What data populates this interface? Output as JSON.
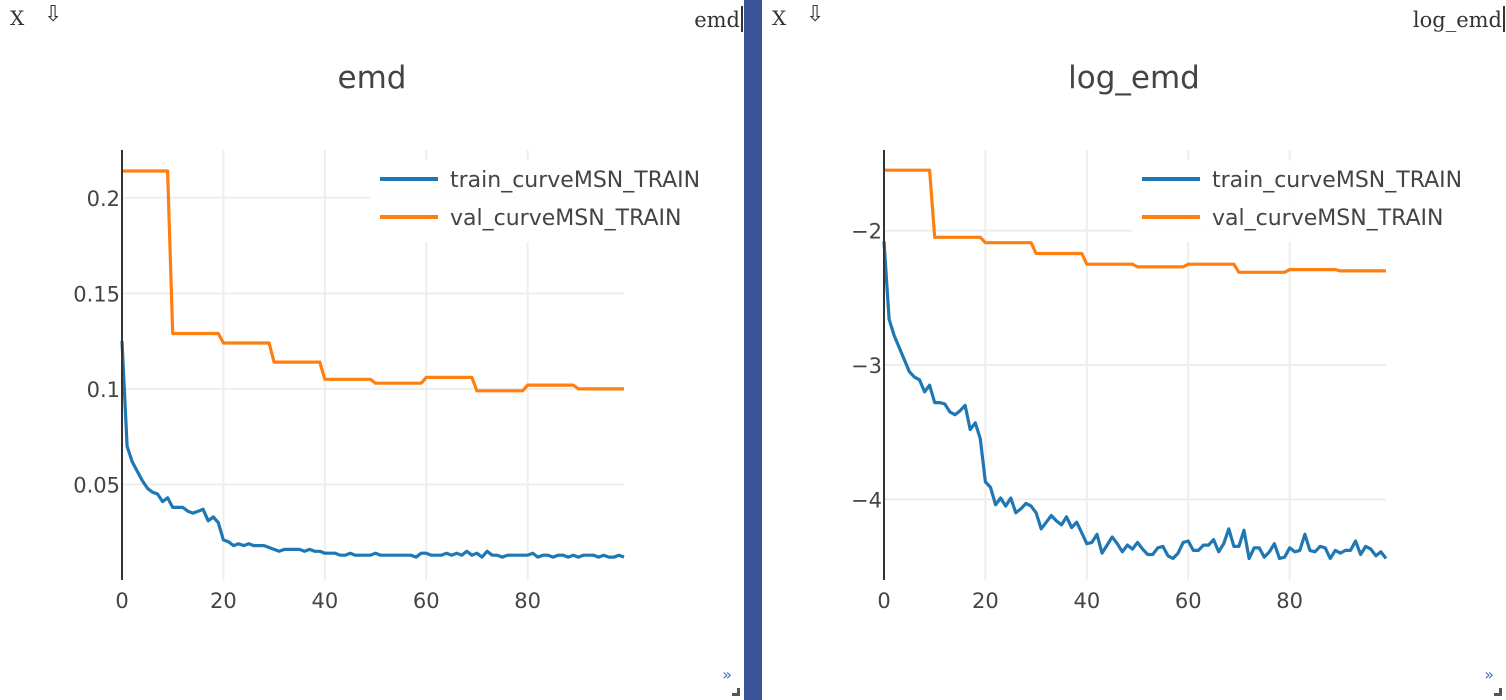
{
  "panes": [
    {
      "close_label": "X",
      "download_label": "⇩",
      "env_title": "emd",
      "corner_label": "»"
    },
    {
      "close_label": "X",
      "download_label": "⇩",
      "env_title": "log_emd",
      "corner_label": "»"
    }
  ],
  "chart_data": [
    {
      "type": "line",
      "title": "emd",
      "xlabel": "",
      "ylabel": "",
      "xlim": [
        0,
        99
      ],
      "ylim": [
        0.0,
        0.225
      ],
      "xticks": [
        0,
        20,
        40,
        60,
        80
      ],
      "xtick_labels": [
        "0",
        "20",
        "40",
        "60",
        "80"
      ],
      "yticks": [
        0.05,
        0.1,
        0.15,
        0.2
      ],
      "ytick_labels": [
        "0.05",
        "0.1",
        "0.15",
        "0.2"
      ],
      "grid": true,
      "legend_position": "top-right",
      "series": [
        {
          "name": "train_curveMSN_TRAIN",
          "color": "#1f77b4",
          "x": [
            0,
            1,
            2,
            3,
            4,
            5,
            6,
            7,
            8,
            9,
            10,
            11,
            12,
            13,
            14,
            15,
            16,
            17,
            18,
            19,
            20,
            21,
            22,
            23,
            24,
            25,
            26,
            27,
            28,
            29,
            30,
            31,
            32,
            33,
            34,
            35,
            36,
            37,
            38,
            39,
            40,
            41,
            42,
            43,
            44,
            45,
            46,
            47,
            48,
            49,
            50,
            51,
            52,
            53,
            54,
            55,
            56,
            57,
            58,
            59,
            60,
            61,
            62,
            63,
            64,
            65,
            66,
            67,
            68,
            69,
            70,
            71,
            72,
            73,
            74,
            75,
            76,
            77,
            78,
            79,
            80,
            81,
            82,
            83,
            84,
            85,
            86,
            87,
            88,
            89,
            90,
            91,
            92,
            93,
            94,
            95,
            96,
            97,
            98,
            99
          ],
          "values": [
            0.125,
            0.07,
            0.062,
            0.057,
            0.052,
            0.048,
            0.046,
            0.045,
            0.041,
            0.043,
            0.038,
            0.038,
            0.038,
            0.036,
            0.035,
            0.036,
            0.037,
            0.031,
            0.033,
            0.03,
            0.021,
            0.02,
            0.018,
            0.019,
            0.018,
            0.019,
            0.018,
            0.018,
            0.018,
            0.017,
            0.016,
            0.015,
            0.016,
            0.016,
            0.016,
            0.016,
            0.015,
            0.016,
            0.015,
            0.015,
            0.014,
            0.014,
            0.014,
            0.013,
            0.013,
            0.014,
            0.013,
            0.013,
            0.013,
            0.013,
            0.014,
            0.013,
            0.013,
            0.013,
            0.013,
            0.013,
            0.013,
            0.013,
            0.012,
            0.014,
            0.014,
            0.013,
            0.013,
            0.013,
            0.014,
            0.013,
            0.014,
            0.013,
            0.015,
            0.013,
            0.014,
            0.012,
            0.015,
            0.013,
            0.013,
            0.012,
            0.013,
            0.013,
            0.013,
            0.013,
            0.013,
            0.014,
            0.012,
            0.013,
            0.013,
            0.012,
            0.013,
            0.013,
            0.012,
            0.013,
            0.012,
            0.013,
            0.013,
            0.013,
            0.012,
            0.013,
            0.012,
            0.012,
            0.013,
            0.012
          ]
        },
        {
          "name": "val_curveMSN_TRAIN",
          "color": "#ff7f0e",
          "x": [
            0,
            9,
            10,
            19,
            20,
            29,
            30,
            39,
            40,
            49,
            50,
            59,
            60,
            69,
            70,
            79,
            80,
            89,
            90,
            99
          ],
          "values": [
            0.214,
            0.214,
            0.129,
            0.129,
            0.124,
            0.124,
            0.114,
            0.114,
            0.105,
            0.105,
            0.103,
            0.103,
            0.106,
            0.106,
            0.099,
            0.099,
            0.102,
            0.102,
            0.1,
            0.1
          ]
        }
      ]
    },
    {
      "type": "line",
      "title": "log_emd",
      "xlabel": "",
      "ylabel": "",
      "xlim": [
        0,
        99
      ],
      "ylim": [
        -4.6,
        -1.4
      ],
      "xticks": [
        0,
        20,
        40,
        60,
        80
      ],
      "xtick_labels": [
        "0",
        "20",
        "40",
        "60",
        "80"
      ],
      "yticks": [
        -2,
        -3,
        -4
      ],
      "ytick_labels": [
        "−2",
        "−3",
        "−4"
      ],
      "grid": true,
      "legend_position": "top-right",
      "series": [
        {
          "name": "train_curveMSN_TRAIN",
          "color": "#1f77b4",
          "x": [
            0,
            1,
            2,
            3,
            4,
            5,
            6,
            7,
            8,
            9,
            10,
            11,
            12,
            13,
            14,
            15,
            16,
            17,
            18,
            19,
            20,
            21,
            22,
            23,
            24,
            25,
            26,
            27,
            28,
            29,
            30,
            31,
            32,
            33,
            34,
            35,
            36,
            37,
            38,
            39,
            40,
            41,
            42,
            43,
            44,
            45,
            46,
            47,
            48,
            49,
            50,
            51,
            52,
            53,
            54,
            55,
            56,
            57,
            58,
            59,
            60,
            61,
            62,
            63,
            64,
            65,
            66,
            67,
            68,
            69,
            70,
            71,
            72,
            73,
            74,
            75,
            76,
            77,
            78,
            79,
            80,
            81,
            82,
            83,
            84,
            85,
            86,
            87,
            88,
            89,
            90,
            91,
            92,
            93,
            94,
            95,
            96,
            97,
            98,
            99
          ],
          "values": [
            -2.08,
            -2.66,
            -2.78,
            -2.87,
            -2.96,
            -3.05,
            -3.09,
            -3.11,
            -3.2,
            -3.15,
            -3.28,
            -3.28,
            -3.29,
            -3.35,
            -3.37,
            -3.34,
            -3.3,
            -3.48,
            -3.43,
            -3.55,
            -3.87,
            -3.91,
            -4.04,
            -3.99,
            -4.05,
            -3.99,
            -4.1,
            -4.07,
            -4.03,
            -4.05,
            -4.1,
            -4.22,
            -4.17,
            -4.12,
            -4.16,
            -4.19,
            -4.13,
            -4.21,
            -4.17,
            -4.25,
            -4.33,
            -4.32,
            -4.26,
            -4.4,
            -4.34,
            -4.28,
            -4.33,
            -4.39,
            -4.34,
            -4.37,
            -4.32,
            -4.37,
            -4.41,
            -4.41,
            -4.36,
            -4.35,
            -4.42,
            -4.44,
            -4.4,
            -4.32,
            -4.31,
            -4.38,
            -4.38,
            -4.34,
            -4.34,
            -4.3,
            -4.39,
            -4.33,
            -4.22,
            -4.35,
            -4.35,
            -4.23,
            -4.44,
            -4.36,
            -4.36,
            -4.43,
            -4.39,
            -4.33,
            -4.44,
            -4.43,
            -4.36,
            -4.39,
            -4.38,
            -4.26,
            -4.38,
            -4.39,
            -4.35,
            -4.36,
            -4.44,
            -4.38,
            -4.4,
            -4.38,
            -4.38,
            -4.31,
            -4.41,
            -4.35,
            -4.37,
            -4.42,
            -4.39,
            -4.44
          ]
        },
        {
          "name": "val_curveMSN_TRAIN",
          "color": "#ff7f0e",
          "x": [
            0,
            9,
            10,
            19,
            20,
            29,
            30,
            39,
            40,
            49,
            50,
            59,
            60,
            69,
            70,
            79,
            80,
            89,
            90,
            99
          ],
          "values": [
            -1.55,
            -1.55,
            -2.05,
            -2.05,
            -2.09,
            -2.09,
            -2.17,
            -2.17,
            -2.25,
            -2.25,
            -2.27,
            -2.27,
            -2.25,
            -2.25,
            -2.31,
            -2.31,
            -2.29,
            -2.29,
            -2.3,
            -2.3
          ]
        }
      ]
    }
  ]
}
